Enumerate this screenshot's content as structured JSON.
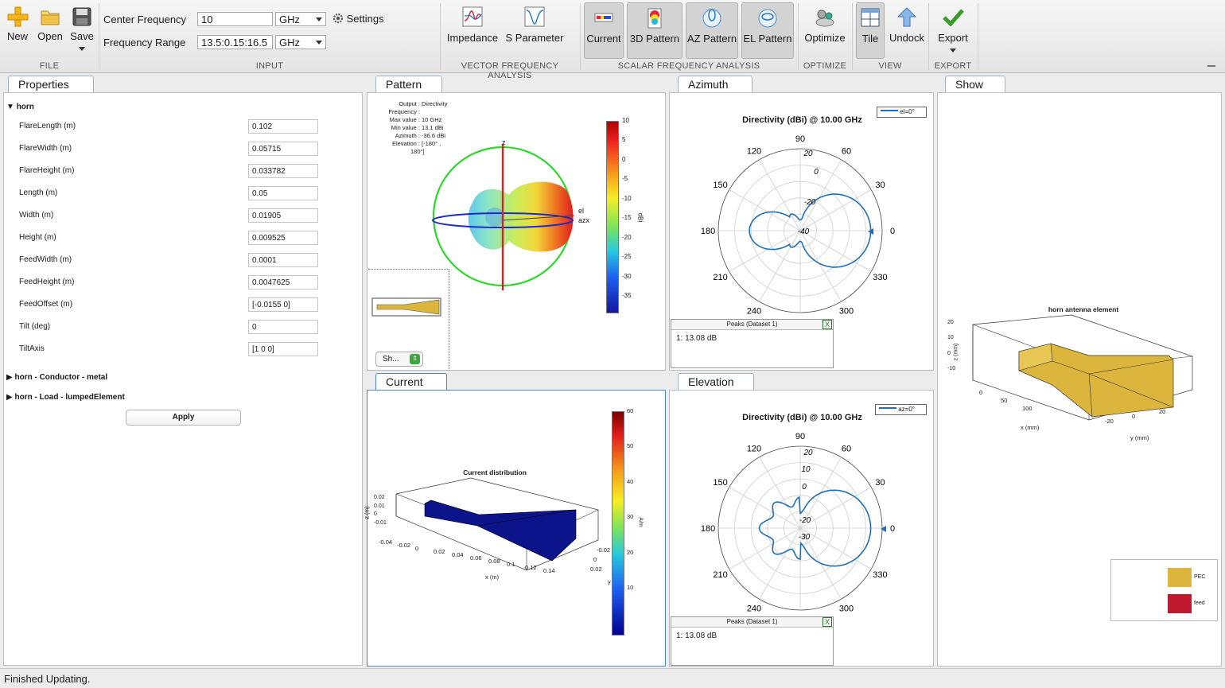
{
  "toolstrip": {
    "file": {
      "new": "New",
      "open": "Open",
      "save": "Save",
      "section": "FILE"
    },
    "input": {
      "center_frequency_label": "Center Frequency",
      "center_frequency_value": "10",
      "center_frequency_unit": "GHz",
      "frequency_range_label": "Frequency Range",
      "frequency_range_value": "13.5:0.15:16.5",
      "frequency_range_unit": "GHz",
      "settings": "Settings",
      "section": "INPUT"
    },
    "vector": {
      "impedance": "Impedance",
      "s_parameter": "S Parameter",
      "section": "VECTOR FREQUENCY ANALYSIS"
    },
    "scalar": {
      "current": "Current",
      "pattern_3d": "3D Pattern",
      "az_pattern": "AZ Pattern",
      "el_pattern": "EL Pattern",
      "section": "SCALAR FREQUENCY ANALYSIS"
    },
    "optimize": {
      "optimize": "Optimize",
      "section": "OPTIMIZE"
    },
    "view": {
      "tile": "Tile",
      "undock": "Undock",
      "section": "VIEW"
    },
    "export": {
      "export": "Export",
      "section": "EXPORT"
    }
  },
  "properties": {
    "tab": "Properties",
    "group": "horn",
    "rows": [
      {
        "label": "FlareLength (m)",
        "value": "0.102"
      },
      {
        "label": "FlareWidth (m)",
        "value": "0.05715"
      },
      {
        "label": "FlareHeight (m)",
        "value": "0.033782"
      },
      {
        "label": "Length (m)",
        "value": "0.05"
      },
      {
        "label": "Width (m)",
        "value": "0.01905"
      },
      {
        "label": "Height (m)",
        "value": "0.009525"
      },
      {
        "label": "FeedWidth (m)",
        "value": "0.0001"
      },
      {
        "label": "FeedHeight (m)",
        "value": "0.0047625"
      },
      {
        "label": "FeedOffset (m)",
        "value": "[-0.0155 0]"
      },
      {
        "label": "Tilt (deg)",
        "value": "0"
      },
      {
        "label": "TiltAxis",
        "value": "[1 0 0]"
      }
    ],
    "conductor": "horn - Conductor - metal",
    "load": "horn - Load - lumpedElement",
    "apply": "Apply"
  },
  "pattern": {
    "tab": "Pattern",
    "info_keys": [
      "Output :",
      "Frequency :",
      "Max value :",
      "Min value :",
      "Azimuth :",
      "Elevation :"
    ],
    "info_vals": [
      "Directivity",
      "",
      "10 GHz",
      "13.1 dBi",
      "-36.6 dBi",
      "[-180° ,"
    ],
    "info_extra": "180°]",
    "colorbar_ticks": [
      "10",
      "5",
      "0",
      "-5",
      "-10",
      "-15",
      "-20",
      "-25",
      "-30",
      "-35"
    ],
    "colorbar_unit": "dBi",
    "axis_z": "z",
    "axis_el": "el",
    "axis_az": "azx",
    "show_button": "Sh..."
  },
  "current": {
    "tab": "Current",
    "title": "Current distribution",
    "x_ticks": [
      "-0.04",
      "-0.02",
      "0",
      "0.02",
      "0.04",
      "0.06",
      "0.08",
      "0.1",
      "0.12",
      "0.14"
    ],
    "x_label": "x (m)",
    "z_ticks": [
      "0.02",
      "0.01",
      "0",
      "-0.01"
    ],
    "z_label": "z (m)",
    "y_ticks": [
      "-0.02",
      "0",
      "0.02"
    ],
    "y_label": "y",
    "colorbar_ticks": [
      "60",
      "50",
      "40",
      "30",
      "20",
      "10"
    ],
    "colorbar_unit": "A/m"
  },
  "azimuth": {
    "tab": "Azimuth",
    "title": "Directivity (dBi) @ 10.00 GHz",
    "legend": "el=0°",
    "angles": [
      "90",
      "60",
      "30",
      "0",
      "330",
      "300",
      "240",
      "210",
      "180",
      "150",
      "120"
    ],
    "radial": [
      "20",
      "0",
      "-20",
      "-40"
    ],
    "peaks_title": "Peaks (Dataset 1)",
    "peaks_value": "1: 13.08 dB"
  },
  "elevation": {
    "tab": "Elevation",
    "title": "Directivity (dBi) @ 10.00 GHz",
    "legend": "az=0°",
    "angles": [
      "90",
      "60",
      "30",
      "0",
      "330",
      "300",
      "240",
      "210",
      "180",
      "150",
      "120"
    ],
    "radial": [
      "20",
      "10",
      "0",
      "-20",
      "-30"
    ],
    "peaks_title": "Peaks (Dataset 1)",
    "peaks_value": "1: 13.08 dB"
  },
  "show": {
    "tab": "Show",
    "title": "horn antenna element",
    "z_ticks": [
      "20",
      "10",
      "0",
      "-10"
    ],
    "z_label": "z (mm)",
    "x_ticks": [
      "0",
      "50",
      "100"
    ],
    "x_label": "x (mm)",
    "y_ticks": [
      "-20",
      "0",
      "20"
    ],
    "y_label": "y (mm)",
    "legend": [
      {
        "label": "PEC",
        "color": "#dcb53c"
      },
      {
        "label": "feed",
        "color": "#c0182e"
      }
    ]
  },
  "status": "Finished Updating."
}
